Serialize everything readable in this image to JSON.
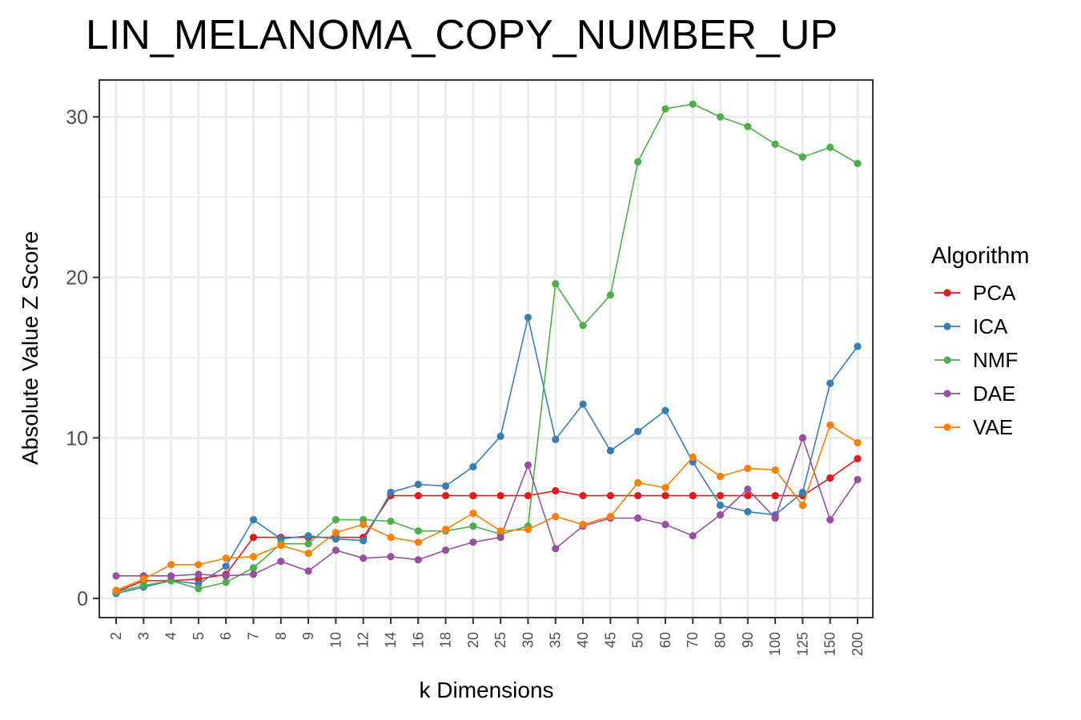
{
  "chart_data": {
    "type": "line",
    "title": "LIN_MELANOMA_COPY_NUMBER_UP",
    "xlabel": "k Dimensions",
    "ylabel": "Absolute Value Z Score",
    "categories": [
      "2",
      "3",
      "4",
      "5",
      "6",
      "7",
      "8",
      "9",
      "10",
      "12",
      "14",
      "16",
      "18",
      "20",
      "25",
      "30",
      "35",
      "40",
      "45",
      "50",
      "60",
      "70",
      "80",
      "90",
      "100",
      "125",
      "150",
      "200"
    ],
    "y_ticks": [
      0,
      10,
      20,
      30
    ],
    "ylim": [
      -1.2,
      32.3
    ],
    "grid": true,
    "legend": {
      "title": "Algorithm",
      "position": "right"
    },
    "series": [
      {
        "name": "PCA",
        "color": "#E41A1C",
        "values": [
          0.4,
          1.1,
          1.1,
          1.2,
          1.5,
          3.8,
          3.8,
          3.8,
          3.8,
          3.8,
          6.4,
          6.4,
          6.4,
          6.4,
          6.4,
          6.4,
          6.7,
          6.4,
          6.4,
          6.4,
          6.4,
          6.4,
          6.4,
          6.4,
          6.4,
          6.4,
          7.5,
          8.7
        ]
      },
      {
        "name": "ICA",
        "color": "#377EB8",
        "values": [
          0.3,
          0.7,
          1.1,
          0.9,
          2.0,
          4.9,
          3.7,
          3.9,
          3.7,
          3.6,
          6.6,
          7.1,
          7.0,
          8.2,
          10.1,
          17.5,
          9.9,
          12.1,
          9.2,
          10.4,
          11.7,
          8.5,
          5.8,
          5.4,
          5.2,
          6.6,
          13.4,
          15.7
        ]
      },
      {
        "name": "NMF",
        "color": "#4DAF4A",
        "values": [
          0.4,
          0.8,
          1.1,
          0.6,
          1.0,
          1.9,
          3.4,
          3.4,
          4.9,
          4.9,
          4.8,
          4.2,
          4.2,
          4.5,
          4.0,
          4.5,
          19.6,
          17.0,
          18.9,
          27.2,
          30.5,
          30.8,
          30.0,
          29.4,
          28.3,
          27.5,
          28.1,
          27.1
        ]
      },
      {
        "name": "DAE",
        "color": "#984EA3",
        "values": [
          1.4,
          1.4,
          1.4,
          1.5,
          1.4,
          1.5,
          2.3,
          1.7,
          3.0,
          2.5,
          2.6,
          2.4,
          3.0,
          3.5,
          3.8,
          8.3,
          3.1,
          4.5,
          5.0,
          5.0,
          4.6,
          3.9,
          5.2,
          6.8,
          5.0,
          10.0,
          4.9,
          7.4
        ]
      },
      {
        "name": "VAE",
        "color": "#FF7F00",
        "values": [
          0.5,
          1.2,
          2.1,
          2.1,
          2.5,
          2.6,
          3.3,
          2.8,
          4.1,
          4.6,
          3.8,
          3.5,
          4.3,
          5.3,
          4.2,
          4.3,
          5.1,
          4.6,
          5.1,
          7.2,
          6.9,
          8.8,
          7.6,
          8.1,
          8.0,
          5.8,
          10.8,
          9.7
        ]
      }
    ]
  }
}
